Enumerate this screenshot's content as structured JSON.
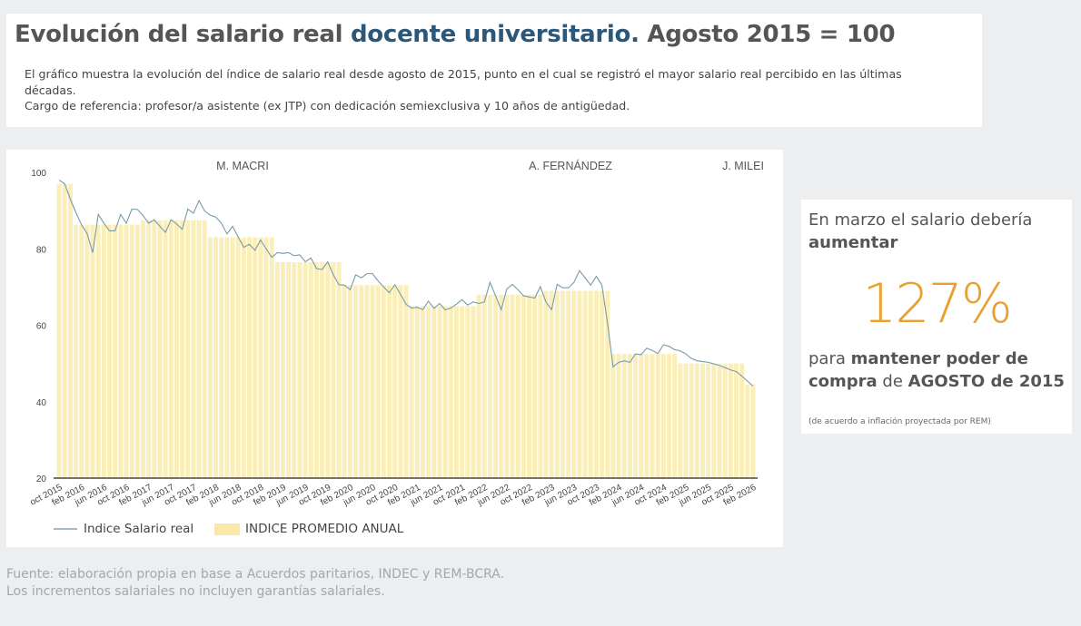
{
  "header": {
    "title_part1": "Evolución del salario real ",
    "title_accent": "docente universitario.",
    "title_part2": " Agosto 2015 = 100",
    "description_line1": "El gráfico muestra la evolución del índice de salario real desde agosto de 2015, punto en el cual se registró el mayor salario real percibido en las últimas décadas.",
    "description_line2": "Cargo de referencia: profesor/a asistente (ex JTP) con dedicación semiexclusiva y 10 años de antigüedad."
  },
  "card": {
    "text_a": "En marzo el salario debería ",
    "text_a_bold": "aumentar",
    "value": "127%",
    "text_b": "para ",
    "text_b_bold1": "mantener poder de compra",
    "text_b_mid": " de ",
    "text_b_bold2": "AGOSTO de 2015",
    "note": "(de acuerdo a inflación proyectada por REM)"
  },
  "source": {
    "line1": "Fuente: elaboración propia en base a Acuerdos paritarios, INDEC y REM-BCRA.",
    "line2": "Los incrementos salariales no incluyen garantías salariales."
  },
  "colors": {
    "line": "#7a9aa8",
    "bar": "#faefb9",
    "title_accent": "#2b587a",
    "highlight": "#e8a02f"
  },
  "chart_data": {
    "type": "bar+line",
    "ylim": [
      20,
      100
    ],
    "yticks": [
      20,
      40,
      60,
      80,
      100
    ],
    "x_start": "oct 2015",
    "xtick_labels": [
      "oct 2015",
      "feb 2016",
      "jun 2016",
      "oct 2016",
      "feb 2017",
      "jun 2017",
      "oct 2017",
      "feb 2018",
      "jun 2018",
      "oct 2018",
      "feb 2019",
      "jun 2019",
      "oct 2019",
      "feb 2020",
      "jun 2020",
      "oct 2020",
      "feb 2021",
      "jun 2021",
      "oct 2021",
      "feb 2022",
      "jun 2022",
      "oct 2022",
      "feb 2023",
      "jun 2023",
      "oct 2023",
      "feb 2024",
      "jun 2024",
      "oct 2024",
      "feb 2025",
      "jun 2025",
      "oct 2025",
      "feb 2026"
    ],
    "annotations": [
      {
        "text": "M. MACRI",
        "at": "feb 2018"
      },
      {
        "text": "A. FERNÁNDEZ",
        "at": "jun 2022"
      },
      {
        "text": "J. MILEI",
        "at": "jan 2026"
      }
    ],
    "legend": "bottom-left",
    "series": [
      {
        "name": "Indice Salario real",
        "type": "line",
        "values": [
          98,
          97,
          93,
          89.5,
          86.3,
          84,
          79,
          89,
          86.7,
          84.7,
          84.7,
          89,
          86.7,
          90.4,
          90.3,
          88.7,
          86.7,
          87.6,
          85.9,
          84.3,
          87.6,
          86.5,
          85.1,
          90.4,
          89.3,
          92.6,
          89.9,
          88.8,
          88.3,
          86.7,
          83.9,
          85.9,
          83.1,
          80.4,
          81.2,
          79.6,
          82.3,
          80,
          77.8,
          79,
          78.8,
          79,
          78.2,
          78.4,
          76.6,
          77.6,
          74.8,
          74.6,
          76.6,
          73.2,
          70.6,
          70.5,
          69.3,
          73.2,
          72.4,
          73.5,
          73.5,
          71.6,
          70,
          68.5,
          70.6,
          68.1,
          65.5,
          64.5,
          64.7,
          64.1,
          66.3,
          64.4,
          65.7,
          64,
          64.5,
          65.5,
          66.7,
          65.3,
          66.1,
          65.7,
          66.1,
          71.2,
          67.7,
          64.1,
          69.5,
          70.7,
          69.3,
          67.7,
          67.4,
          67.1,
          70.1,
          66.1,
          64.1,
          70.7,
          69.8,
          69.8,
          71.2,
          74.3,
          72.4,
          70.5,
          72.8,
          70.5,
          60.6,
          49.1,
          50.3,
          50.7,
          50.3,
          52.5,
          52.3,
          54,
          53.4,
          52.6,
          54.9,
          54.5,
          53.6,
          53.3,
          52.5,
          51.3,
          50.7,
          50.5,
          50.3,
          49.9,
          49.5,
          48.9,
          48.3,
          47.9,
          46.7,
          45.4,
          44.1
        ]
      },
      {
        "name": "INDICE PROMEDIO ANUAL",
        "type": "bar",
        "annual_average": [
          {
            "year": 2015,
            "value": 97
          },
          {
            "year": 2016,
            "value": 86.3
          },
          {
            "year": 2017,
            "value": 87.5
          },
          {
            "year": 2018,
            "value": 83
          },
          {
            "year": 2019,
            "value": 76.5
          },
          {
            "year": 2020,
            "value": 70.5
          },
          {
            "year": 2021,
            "value": 65
          },
          {
            "year": 2022,
            "value": 68
          },
          {
            "year": 2023,
            "value": 69
          },
          {
            "year": 2024,
            "value": 52.5
          },
          {
            "year": 2025,
            "value": 50
          },
          {
            "year": 2026,
            "value": 44.5
          }
        ]
      }
    ]
  }
}
